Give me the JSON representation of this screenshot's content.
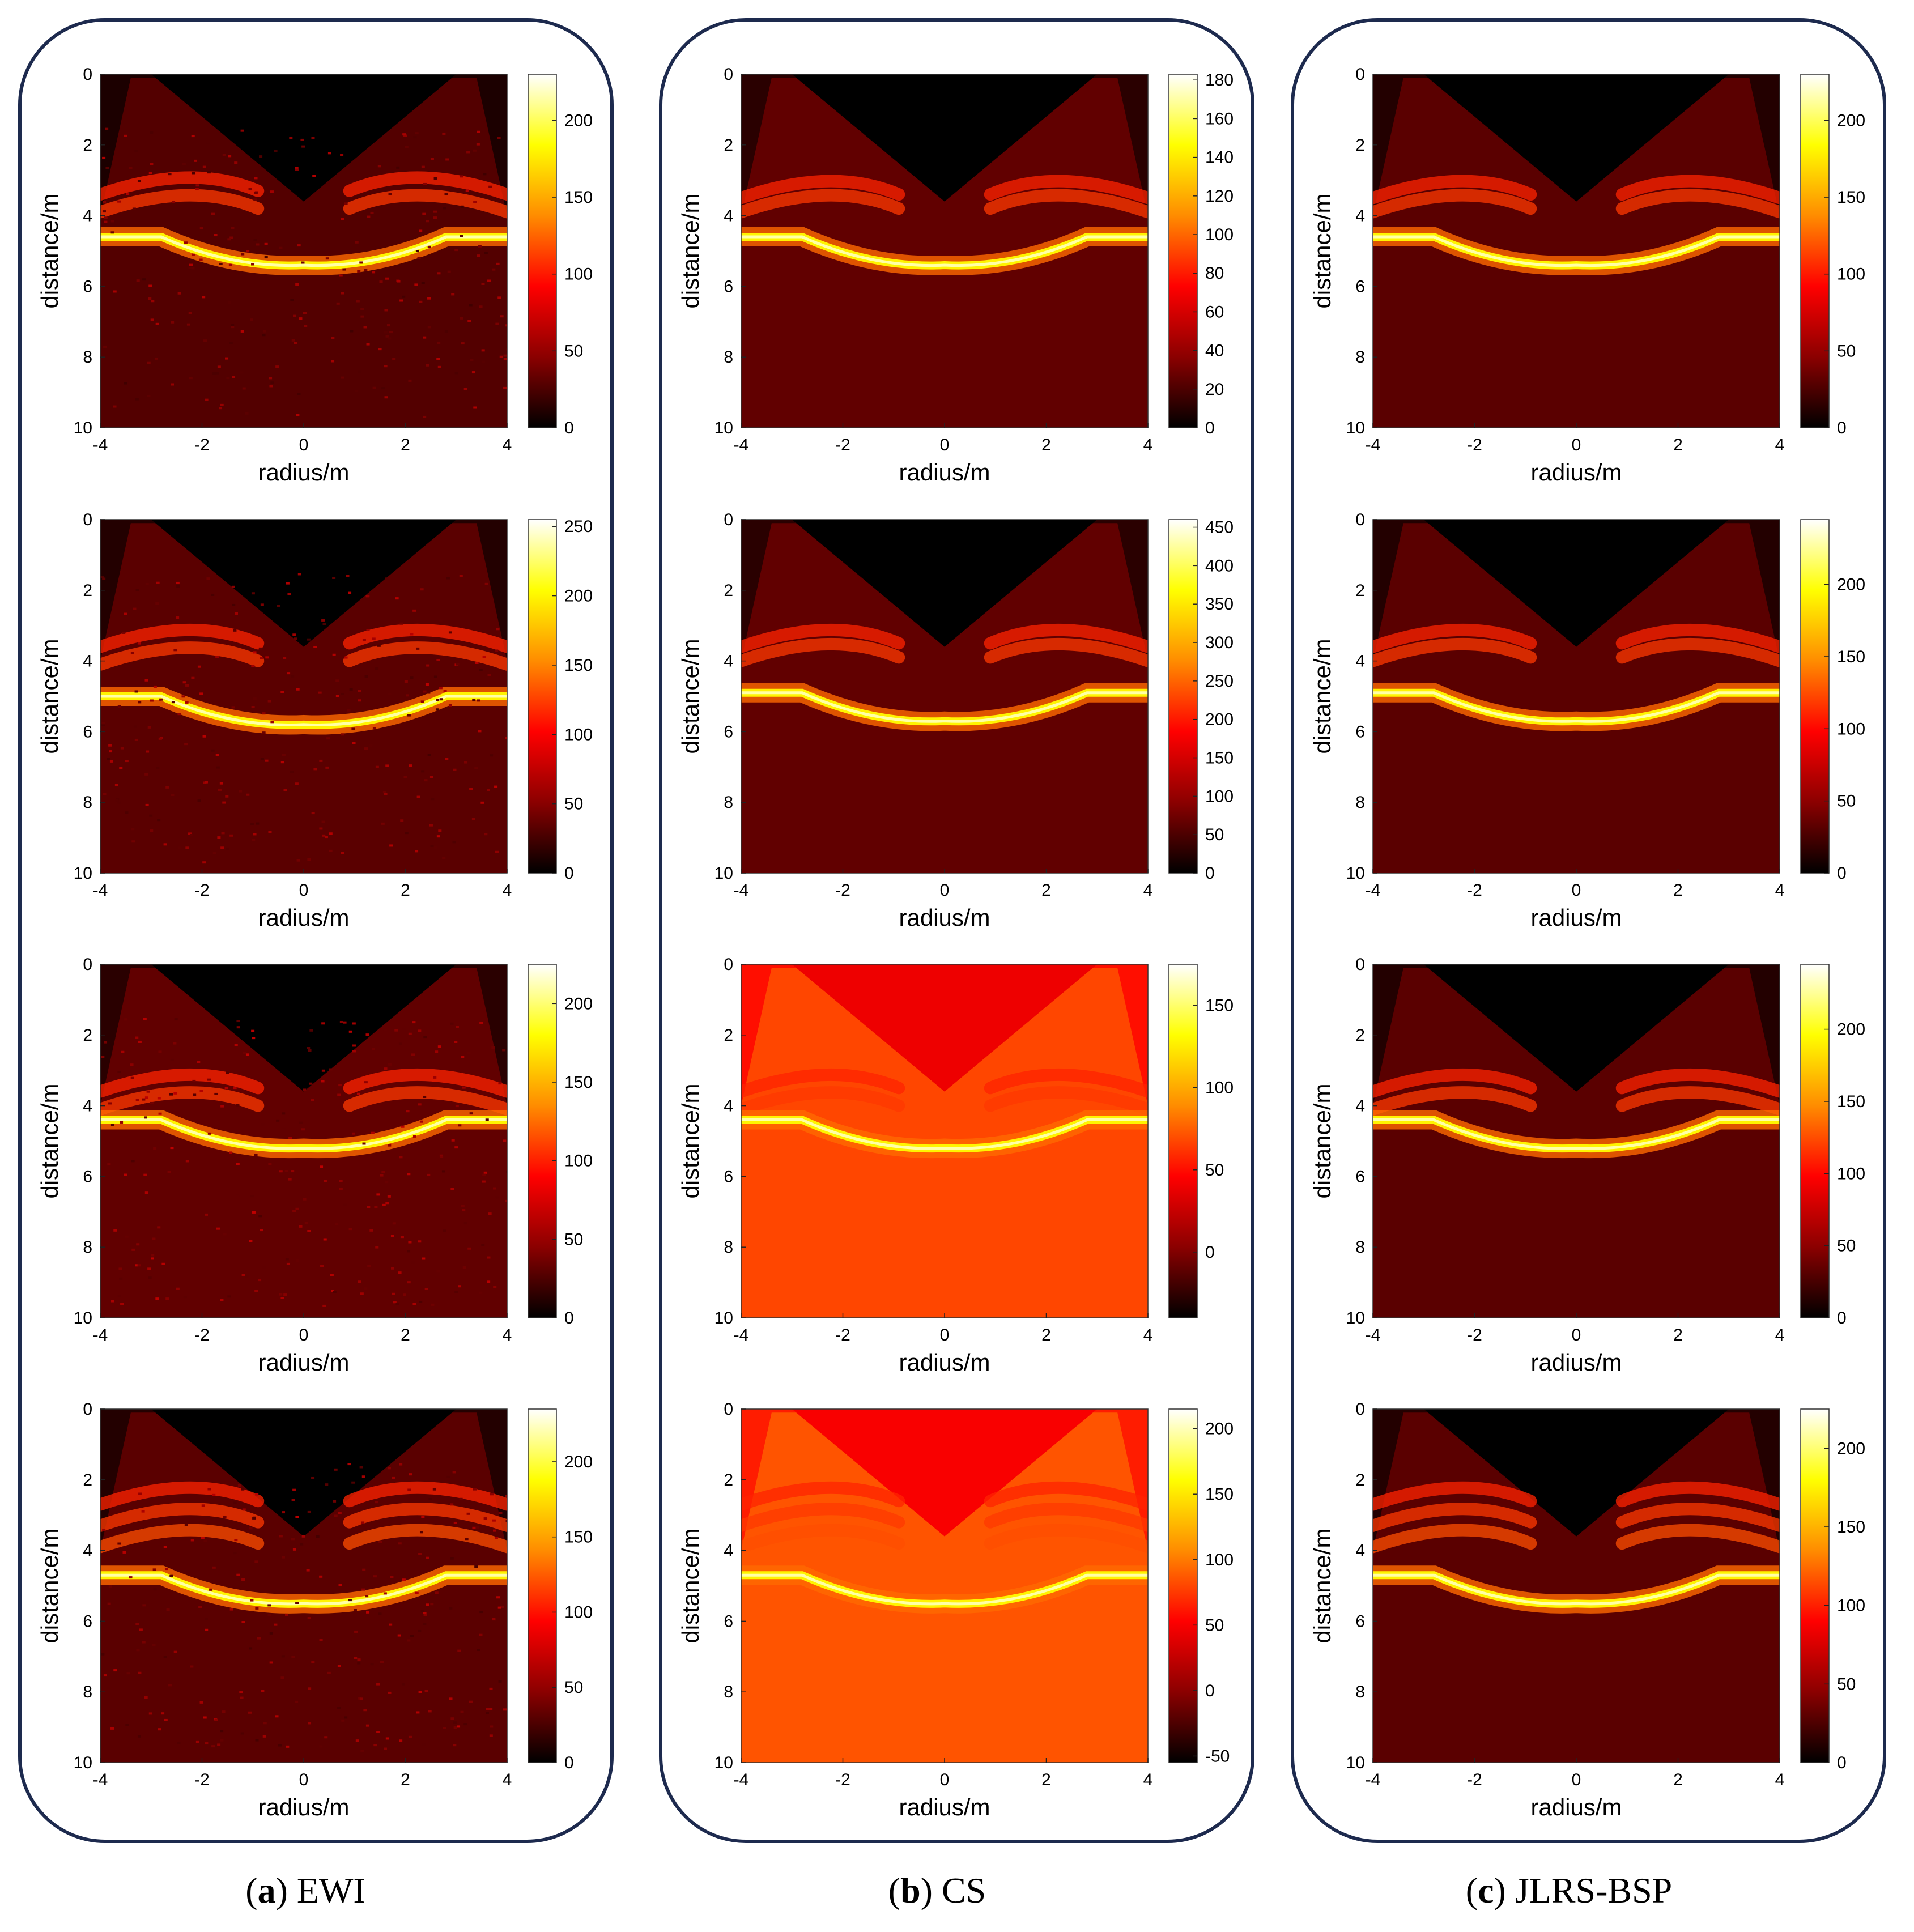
{
  "columns": [
    {
      "letter": "a",
      "method": "EWI",
      "panels": [
        {
          "cbar": {
            "min": 0,
            "max": 230,
            "ticks": [
              0,
              50,
              100,
              150,
              200
            ]
          },
          "bg_level": 0.04,
          "style": "speckle",
          "bright_depth": 4.6,
          "arc_depths": [
            2.8,
            3.3
          ]
        },
        {
          "cbar": {
            "min": 0,
            "max": 255,
            "ticks": [
              0,
              50,
              100,
              150,
              200,
              250
            ]
          },
          "bg_level": 0.05,
          "style": "speckle",
          "bright_depth": 5.0,
          "arc_depths": [
            3.0,
            3.5
          ]
        },
        {
          "cbar": {
            "min": 0,
            "max": 225,
            "ticks": [
              0,
              50,
              100,
              150,
              200
            ]
          },
          "bg_level": 0.06,
          "style": "speckle",
          "bright_depth": 4.4,
          "arc_depths": [
            3.0,
            3.5
          ]
        },
        {
          "cbar": {
            "min": 0,
            "max": 235,
            "ticks": [
              0,
              50,
              100,
              150,
              200
            ]
          },
          "bg_level": 0.05,
          "style": "speckle",
          "bright_depth": 4.7,
          "arc_depths": [
            2.1,
            2.7,
            3.3
          ]
        }
      ]
    },
    {
      "letter": "b",
      "method": "CS",
      "panels": [
        {
          "cbar": {
            "min": 0,
            "max": 183,
            "ticks": [
              0,
              20,
              40,
              60,
              80,
              100,
              120,
              140,
              160,
              180
            ]
          },
          "bg_level": 0.06,
          "style": "smooth",
          "bright_depth": 4.6,
          "arc_depths": [
            2.9,
            3.3
          ]
        },
        {
          "cbar": {
            "min": 0,
            "max": 460,
            "ticks": [
              0,
              50,
              100,
              150,
              200,
              250,
              300,
              350,
              400,
              450
            ]
          },
          "bg_level": 0.06,
          "style": "smooth",
          "bright_depth": 4.9,
          "arc_depths": [
            3.0,
            3.4
          ]
        },
        {
          "cbar": {
            "min": -40,
            "max": 175,
            "ticks": [
              0,
              50,
              100,
              150
            ]
          },
          "bg_level": 0.42,
          "style": "smooth",
          "bright_depth": 4.4,
          "arc_depths": [
            3.0,
            3.5
          ]
        },
        {
          "cbar": {
            "min": -55,
            "max": 215,
            "ticks": [
              -50,
              0,
              50,
              100,
              150,
              200
            ]
          },
          "bg_level": 0.44,
          "style": "smooth",
          "bright_depth": 4.7,
          "arc_depths": [
            2.1,
            2.7,
            3.3
          ]
        }
      ]
    },
    {
      "letter": "c",
      "method": "JLRS-BSP",
      "panels": [
        {
          "cbar": {
            "min": 0,
            "max": 230,
            "ticks": [
              0,
              50,
              100,
              150,
              200
            ]
          },
          "bg_level": 0.05,
          "style": "smooth",
          "bright_depth": 4.6,
          "arc_depths": [
            2.9,
            3.3
          ]
        },
        {
          "cbar": {
            "min": 0,
            "max": 245,
            "ticks": [
              0,
              50,
              100,
              150,
              200
            ]
          },
          "bg_level": 0.05,
          "style": "smooth",
          "bright_depth": 4.9,
          "arc_depths": [
            3.0,
            3.4
          ]
        },
        {
          "cbar": {
            "min": 0,
            "max": 245,
            "ticks": [
              0,
              50,
              100,
              150,
              200
            ]
          },
          "bg_level": 0.05,
          "style": "smooth",
          "bright_depth": 4.4,
          "arc_depths": [
            3.0,
            3.5
          ]
        },
        {
          "cbar": {
            "min": 0,
            "max": 225,
            "ticks": [
              0,
              50,
              100,
              150,
              200
            ]
          },
          "bg_level": 0.05,
          "style": "smooth",
          "bright_depth": 4.7,
          "arc_depths": [
            2.1,
            2.7,
            3.3
          ]
        }
      ]
    }
  ],
  "chart_data": {
    "type": "heatmap",
    "xlabel": "radius/m",
    "ylabel": "distance/m",
    "xlim": [
      -4,
      4
    ],
    "ylim": [
      0,
      10
    ],
    "y_reversed": true,
    "xticks": [
      -4,
      -2,
      0,
      2,
      4
    ],
    "yticks": [
      0,
      2,
      4,
      6,
      8,
      10
    ],
    "colormap": [
      "#000000",
      "#8b0000",
      "#ff0000",
      "#ff8c00",
      "#ffff00",
      "#ffffff"
    ],
    "rows": 4,
    "cols": 3
  },
  "colors": {
    "frame": "#1d2a4e",
    "text": "#000000"
  }
}
